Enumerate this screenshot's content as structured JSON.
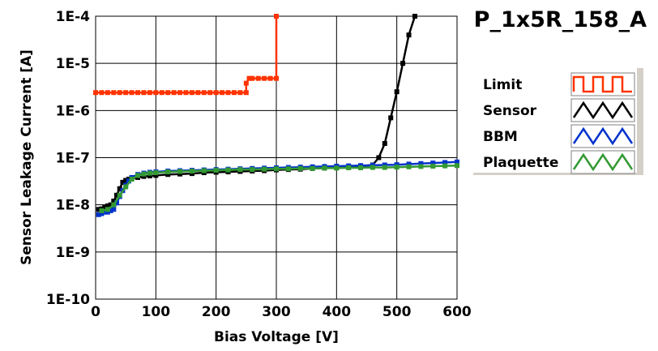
{
  "chart_data": {
    "type": "scatter",
    "title": "P_1x5R_158_A",
    "xlabel": "Bias Voltage [V]",
    "ylabel": "Sensor Leakage Current [A]",
    "xscale": "linear",
    "yscale": "log",
    "xlim": [
      0,
      600
    ],
    "ylim": [
      1e-10,
      0.0001
    ],
    "x_ticks": [
      0,
      100,
      200,
      300,
      400,
      500,
      600
    ],
    "x_tick_labels": [
      "0",
      "100",
      "200",
      "300",
      "400",
      "500",
      "600"
    ],
    "y_ticks": [
      1e-10,
      1e-09,
      1e-08,
      1e-07,
      1e-06,
      1e-05,
      0.0001
    ],
    "y_tick_labels": [
      "1E-10",
      "1E-9",
      "1E-8",
      "1E-7",
      "1E-6",
      "1E-5",
      "1E-4"
    ],
    "grid": true,
    "legend_position": "right",
    "series": [
      {
        "name": "Limit",
        "color": "#ff3300",
        "legend_style": "square-wave",
        "x": [
          0,
          10,
          20,
          30,
          40,
          50,
          60,
          70,
          80,
          90,
          100,
          110,
          120,
          130,
          140,
          150,
          160,
          170,
          180,
          190,
          200,
          210,
          220,
          230,
          240,
          250,
          250,
          255,
          260,
          270,
          280,
          290,
          300,
          300
        ],
        "y": [
          2.4e-06,
          2.4e-06,
          2.4e-06,
          2.4e-06,
          2.4e-06,
          2.4e-06,
          2.4e-06,
          2.4e-06,
          2.4e-06,
          2.4e-06,
          2.4e-06,
          2.4e-06,
          2.4e-06,
          2.4e-06,
          2.4e-06,
          2.4e-06,
          2.4e-06,
          2.4e-06,
          2.4e-06,
          2.4e-06,
          2.4e-06,
          2.4e-06,
          2.4e-06,
          2.4e-06,
          2.4e-06,
          2.4e-06,
          3.8e-06,
          4.8e-06,
          4.8e-06,
          4.8e-06,
          4.8e-06,
          4.8e-06,
          4.8e-06,
          0.0001
        ]
      },
      {
        "name": "Sensor",
        "color": "#000000",
        "legend_style": "triangle",
        "x": [
          5,
          10,
          15,
          20,
          25,
          30,
          35,
          40,
          45,
          50,
          55,
          60,
          70,
          80,
          90,
          100,
          120,
          140,
          160,
          180,
          200,
          220,
          240,
          260,
          280,
          300,
          320,
          340,
          360,
          380,
          400,
          420,
          440,
          460,
          470,
          480,
          490,
          500,
          510,
          520,
          530
        ],
        "y": [
          8e-09,
          8.2e-09,
          9e-09,
          9.5e-09,
          1e-08,
          1.2e-08,
          1.6e-08,
          2.2e-08,
          3e-08,
          3.3e-08,
          3.5e-08,
          3.6e-08,
          3.8e-08,
          4e-08,
          4.1e-08,
          4.2e-08,
          4.4e-08,
          4.5e-08,
          4.6e-08,
          4.8e-08,
          4.9e-08,
          5e-08,
          5.1e-08,
          5.2e-08,
          5.3e-08,
          5.5e-08,
          5.6e-08,
          5.7e-08,
          5.9e-08,
          6e-08,
          6.2e-08,
          6.4e-08,
          6.6e-08,
          7e-08,
          1e-07,
          2e-07,
          7e-07,
          2.5e-06,
          1e-05,
          4e-05,
          0.0001
        ]
      },
      {
        "name": "BBM",
        "color": "#0033cc",
        "legend_style": "triangle",
        "x": [
          5,
          10,
          15,
          20,
          25,
          30,
          35,
          40,
          45,
          50,
          55,
          60,
          70,
          80,
          90,
          100,
          120,
          140,
          160,
          180,
          200,
          220,
          240,
          260,
          280,
          300,
          320,
          340,
          360,
          380,
          400,
          420,
          440,
          460,
          480,
          500,
          520,
          540,
          560,
          580,
          600
        ],
        "y": [
          6.2e-09,
          6.5e-09,
          7e-09,
          7e-09,
          7.5e-09,
          8e-09,
          1.1e-08,
          1.5e-08,
          2e-08,
          2.6e-08,
          3.2e-08,
          3.8e-08,
          4.4e-08,
          4.7e-08,
          4.9e-08,
          5e-08,
          5.2e-08,
          5.3e-08,
          5.4e-08,
          5.5e-08,
          5.6e-08,
          5.7e-08,
          5.8e-08,
          5.9e-08,
          6e-08,
          6.1e-08,
          6.2e-08,
          6.3e-08,
          6.4e-08,
          6.5e-08,
          6.6e-08,
          6.7e-08,
          6.8e-08,
          6.9e-08,
          7e-08,
          7.1e-08,
          7.3e-08,
          7.5e-08,
          7.7e-08,
          7.9e-08,
          8.1e-08
        ]
      },
      {
        "name": "Plaquette",
        "color": "#339933",
        "legend_style": "triangle",
        "x": [
          10,
          20,
          30,
          40,
          50,
          60,
          70,
          80,
          90,
          100,
          120,
          140,
          160,
          180,
          200,
          220,
          240,
          260,
          280,
          300,
          320,
          340,
          360,
          380,
          400,
          420,
          440,
          460,
          480,
          500,
          520,
          540,
          560,
          580,
          600
        ],
        "y": [
          7.5e-09,
          8e-09,
          1e-08,
          1.6e-08,
          2.4e-08,
          3.5e-08,
          4.2e-08,
          4.5e-08,
          4.7e-08,
          4.8e-08,
          5e-08,
          5.1e-08,
          5.2e-08,
          5.3e-08,
          5.4e-08,
          5.5e-08,
          5.6e-08,
          5.6e-08,
          5.7e-08,
          5.8e-08,
          5.8e-08,
          5.9e-08,
          5.9e-08,
          6e-08,
          6e-08,
          6.1e-08,
          6.1e-08,
          6.2e-08,
          6.2e-08,
          6.3e-08,
          6.4e-08,
          6.5e-08,
          6.6e-08,
          6.7e-08,
          6.8e-08
        ]
      }
    ]
  }
}
